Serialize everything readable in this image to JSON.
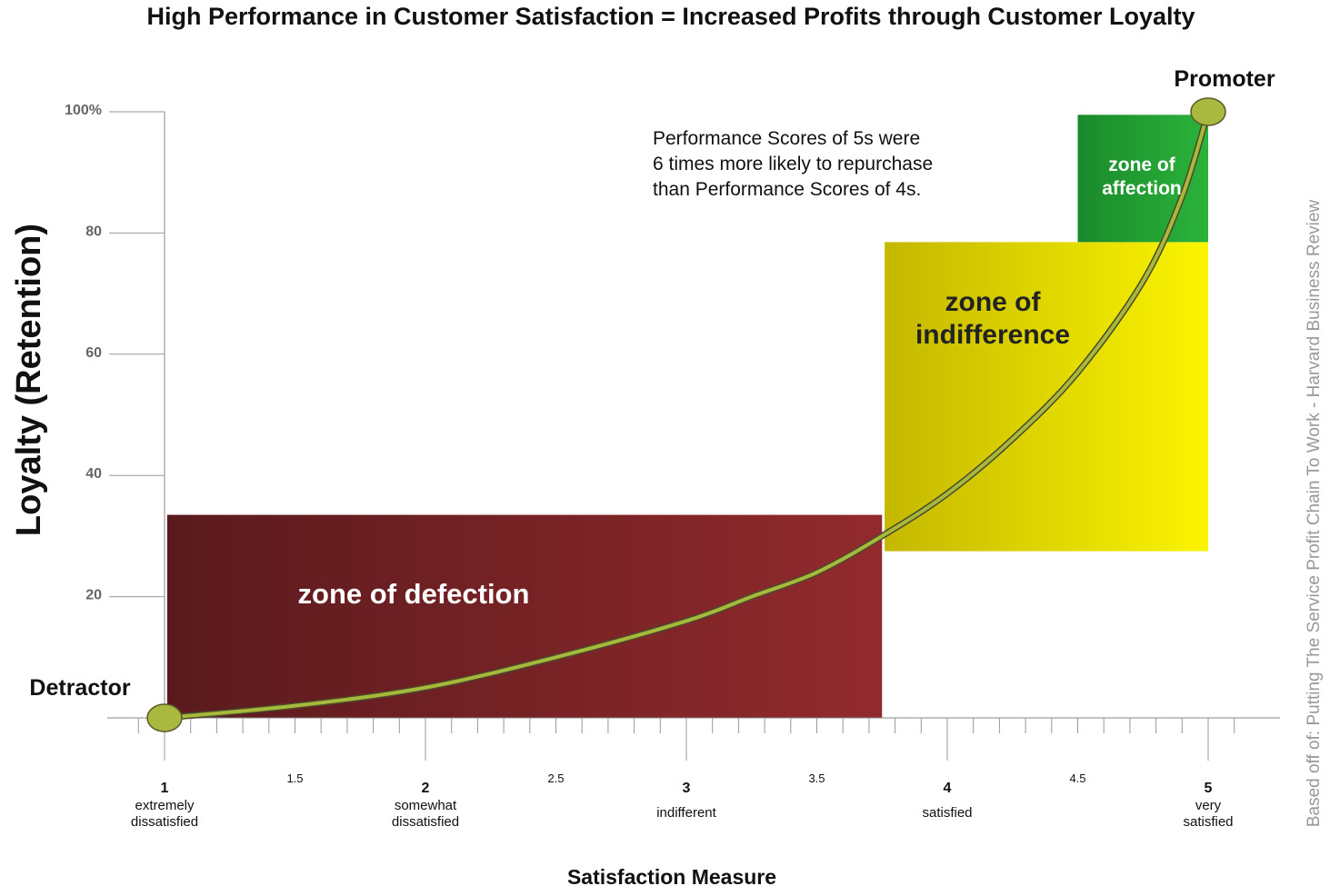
{
  "chart_data": {
    "type": "line",
    "title": "High Performance in Customer Satisfaction = Increased Profits through Customer Loyalty",
    "xlabel": "Satisfaction Measure",
    "ylabel": "Loyalty (Retention)",
    "xlim": [
      1,
      5
    ],
    "ylim": [
      0,
      100
    ],
    "yticks": [
      {
        "value": 20,
        "label": "20"
      },
      {
        "value": 40,
        "label": "40"
      },
      {
        "value": 60,
        "label": "60"
      },
      {
        "value": 80,
        "label": "80"
      },
      {
        "value": 100,
        "label": "100%"
      }
    ],
    "xticks_major": [
      {
        "value": 1,
        "label": "1",
        "desc": [
          "extremely",
          "dissatisfied"
        ]
      },
      {
        "value": 2,
        "label": "2",
        "desc": [
          "somewhat",
          "dissatisfied"
        ]
      },
      {
        "value": 3,
        "label": "3",
        "desc": [
          "indifferent"
        ]
      },
      {
        "value": 4,
        "label": "4",
        "desc": [
          "satisfied"
        ]
      },
      {
        "value": 5,
        "label": "5",
        "desc": [
          "very",
          "satisfied"
        ]
      }
    ],
    "xticks_minor": [
      {
        "value": 1.5,
        "label": "1.5"
      },
      {
        "value": 2.5,
        "label": "2.5"
      },
      {
        "value": 3.5,
        "label": "3.5"
      },
      {
        "value": 4.5,
        "label": "4.5"
      }
    ],
    "grid": false,
    "series": [
      {
        "values_note": "loyalty curve",
        "x": [
          1,
          1.5,
          2,
          2.5,
          3,
          3.25,
          3.5,
          3.75,
          4,
          4.25,
          4.5,
          4.75,
          4.9,
          5
        ],
        "y": [
          0,
          2,
          5,
          10,
          16,
          20,
          24,
          30,
          37,
          46,
          57,
          72,
          86,
          100
        ]
      }
    ],
    "zones": [
      {
        "label": "zone of defection",
        "x": [
          1.01,
          3.75
        ],
        "y": [
          0,
          33.5
        ],
        "color_from": "#5a1a1d",
        "color_to": "#922a2d"
      },
      {
        "label_lines": [
          "zone of",
          "indifference"
        ],
        "x": [
          3.76,
          5.0
        ],
        "y": [
          27.5,
          78.5
        ],
        "color_from": "#c4b800",
        "color_to": "#fbf400"
      },
      {
        "label_lines": [
          "zone of",
          "affection"
        ],
        "x": [
          4.5,
          5.0
        ],
        "y": [
          78.5,
          99.5
        ],
        "color_from": "#1a8a2a",
        "color_to": "#2bb33b"
      }
    ],
    "endpoints": [
      {
        "label": "Detractor",
        "x": 1,
        "y": 0
      },
      {
        "label": "Promoter",
        "x": 5,
        "y": 100
      }
    ],
    "annotation": [
      "Performance Scores of 5s were",
      "6 times more likely to repurchase",
      "than Performance Scores of 4s."
    ],
    "source_note": "Based off of: Putting The Service Profit Chain To Work - Harvard Business Review",
    "curve_color": "#a8b83a",
    "node_color": "#a9b940"
  }
}
